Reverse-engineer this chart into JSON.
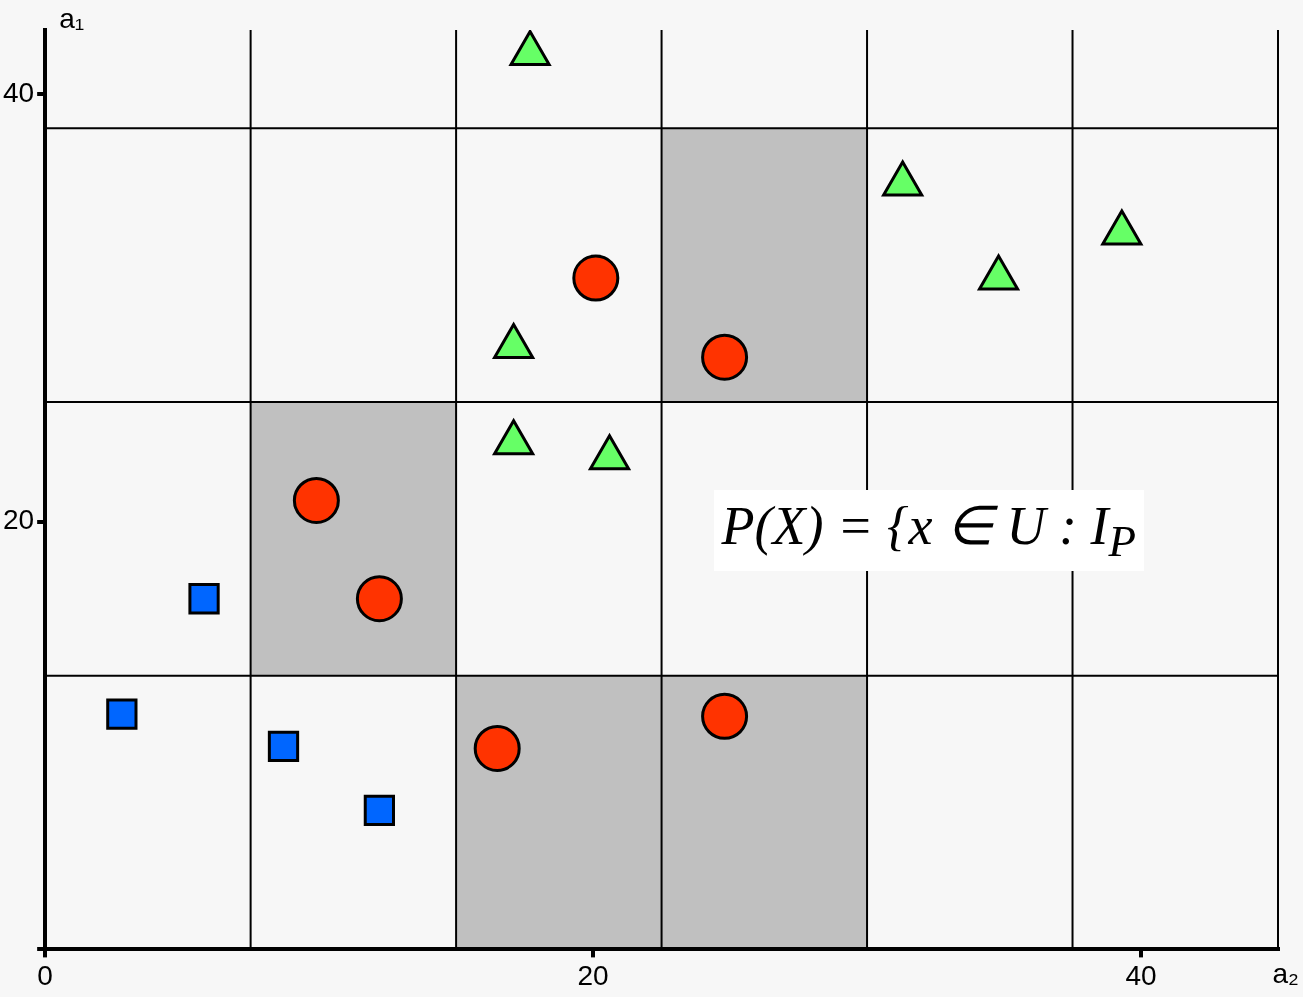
{
  "chart_data": {
    "type": "scatter",
    "xlabel": "a₂",
    "ylabel": "a₁",
    "xlim": [
      0,
      45
    ],
    "ylim": [
      0,
      43
    ],
    "xticks": [
      0,
      20,
      40
    ],
    "yticks": [
      {
        "value": 0,
        "label": null
      },
      20,
      40
    ],
    "grid": false,
    "legend": false,
    "ref_lines": [
      {
        "axis": "x",
        "value": 7.5,
        "color": "#000000"
      },
      {
        "axis": "x",
        "value": 15,
        "color": "#000000"
      },
      {
        "axis": "x",
        "value": 22.5,
        "color": "#000000"
      },
      {
        "axis": "x",
        "value": 30,
        "color": "#000000"
      },
      {
        "axis": "x",
        "value": 37.5,
        "color": "#000000"
      },
      {
        "axis": "x",
        "value": 45,
        "color": "#000000"
      },
      {
        "axis": "y",
        "value": 12.8,
        "color": "#000000"
      },
      {
        "axis": "y",
        "value": 25.6,
        "color": "#000000"
      },
      {
        "axis": "y",
        "value": 38.4,
        "color": "#000000"
      }
    ],
    "series": [
      {
        "color": "#0066ff",
        "marker": "square",
        "x": [
          5.8,
          2.8,
          8.7,
          12.2
        ],
        "values": [
          16.4,
          11.0,
          9.5,
          6.5
        ]
      },
      {
        "color": "#ff3300",
        "marker": "circle",
        "x": [
          9.9,
          12.2,
          16.5,
          24.8,
          24.8,
          20.1
        ],
        "values": [
          21.0,
          16.4,
          9.4,
          10.9,
          27.7,
          31.4
        ]
      },
      {
        "color": "#66ff66",
        "marker": "triangle",
        "x": [
          17.7,
          31.3,
          34.8,
          39.3,
          17.1,
          17.1,
          20.6
        ],
        "values": [
          41.9,
          35.8,
          31.4,
          33.5,
          28.2,
          23.7,
          23.0
        ]
      }
    ],
    "annotations": [
      "P(X) = {x ∈ U : I$_{P}$"
    ]
  }
}
